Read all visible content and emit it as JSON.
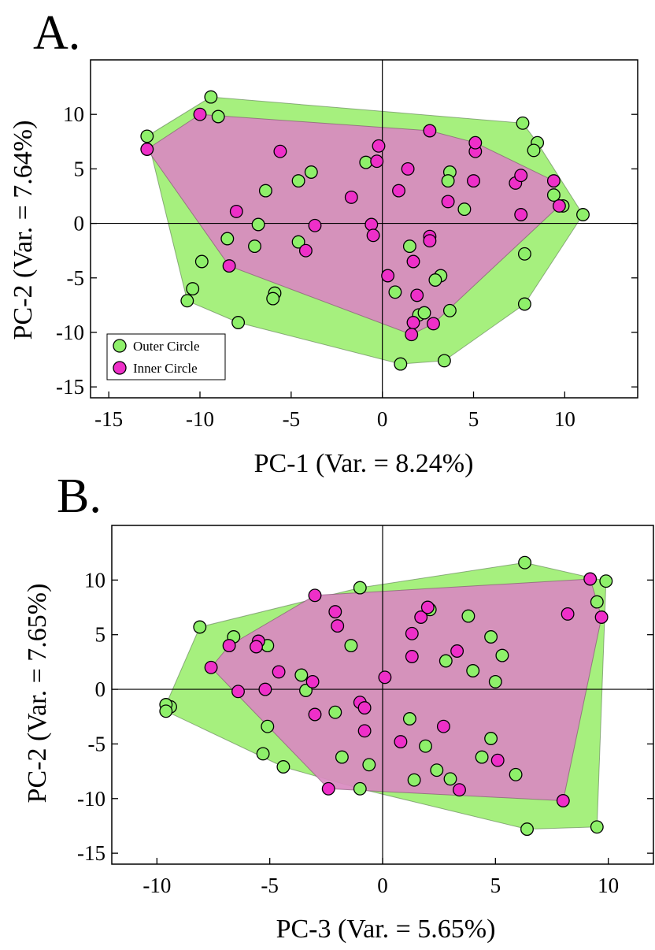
{
  "colors": {
    "outer": "#8ef06a",
    "inner": "#ee2fc8",
    "outer_hull": "#a6f07e",
    "inner_hull": "#d98ac0",
    "inner_hull_tail": "#f07ce0"
  },
  "panels": [
    {
      "letter": "A."
    },
    {
      "letter": "B."
    }
  ],
  "chart_data": [
    {
      "type": "scatter",
      "xlabel": "PC-1 (Var. = 8.24%)",
      "ylabel": "PC-2 (Var. = 7.64%)",
      "xlim": [
        -16,
        14
      ],
      "ylim": [
        -16,
        15
      ],
      "xticks": [
        -15,
        -10,
        -5,
        0,
        5,
        10
      ],
      "yticks": [
        -15,
        -10,
        -5,
        0,
        5,
        10
      ],
      "legend": {
        "placement": "bottom-left",
        "entries": [
          "Outer Circle",
          "Inner Circle"
        ]
      },
      "series": [
        {
          "name": "Outer Circle",
          "color": "#8ef06a",
          "points": [
            [
              -9.4,
              11.6
            ],
            [
              -12.9,
              8.0
            ],
            [
              -9.0,
              9.8
            ],
            [
              -3.9,
              4.7
            ],
            [
              -4.6,
              3.9
            ],
            [
              -6.4,
              3.0
            ],
            [
              -6.8,
              -0.1
            ],
            [
              -8.5,
              -1.4
            ],
            [
              -7.0,
              -2.1
            ],
            [
              -4.6,
              -1.7
            ],
            [
              -9.9,
              -3.5
            ],
            [
              -10.4,
              -6.0
            ],
            [
              -10.7,
              -7.1
            ],
            [
              -5.9,
              -6.4
            ],
            [
              -6.0,
              -6.9
            ],
            [
              -7.9,
              -9.1
            ],
            [
              7.7,
              9.2
            ],
            [
              8.5,
              7.4
            ],
            [
              8.3,
              6.7
            ],
            [
              3.7,
              4.7
            ],
            [
              3.6,
              3.9
            ],
            [
              4.5,
              1.3
            ],
            [
              9.4,
              2.6
            ],
            [
              9.9,
              1.6
            ],
            [
              11.0,
              0.8
            ],
            [
              -0.9,
              5.6
            ],
            [
              1.5,
              -2.1
            ],
            [
              7.8,
              -2.8
            ],
            [
              3.2,
              -4.8
            ],
            [
              2.9,
              -5.2
            ],
            [
              0.7,
              -6.3
            ],
            [
              7.8,
              -7.4
            ],
            [
              3.7,
              -8.0
            ],
            [
              2.0,
              -8.4
            ],
            [
              2.3,
              -8.2
            ],
            [
              1.0,
              -12.9
            ],
            [
              3.4,
              -12.6
            ]
          ]
        },
        {
          "name": "Inner Circle",
          "color": "#ee2fc8",
          "points": [
            [
              -12.9,
              6.8
            ],
            [
              -10.0,
              10.0
            ],
            [
              -5.6,
              6.6
            ],
            [
              -8.0,
              1.1
            ],
            [
              -3.7,
              -0.2
            ],
            [
              -4.2,
              -2.5
            ],
            [
              -8.4,
              -3.9
            ],
            [
              -1.7,
              2.4
            ],
            [
              -0.6,
              -0.1
            ],
            [
              -0.5,
              -1.1
            ],
            [
              -0.2,
              7.1
            ],
            [
              -0.3,
              5.7
            ],
            [
              0.9,
              3.0
            ],
            [
              1.4,
              5.0
            ],
            [
              2.6,
              8.5
            ],
            [
              2.6,
              -1.2
            ],
            [
              2.6,
              -1.6
            ],
            [
              1.7,
              -3.5
            ],
            [
              0.3,
              -4.8
            ],
            [
              1.9,
              -6.6
            ],
            [
              1.7,
              -9.1
            ],
            [
              1.6,
              -10.2
            ],
            [
              2.8,
              -9.2
            ],
            [
              3.6,
              2.0
            ],
            [
              5.1,
              6.6
            ],
            [
              5.1,
              7.4
            ],
            [
              5.0,
              3.9
            ],
            [
              7.3,
              3.7
            ],
            [
              7.6,
              4.4
            ],
            [
              7.6,
              0.8
            ],
            [
              9.4,
              3.9
            ],
            [
              9.7,
              1.6
            ]
          ]
        }
      ]
    },
    {
      "type": "scatter",
      "xlabel": "PC-3 (Var. = 5.65%)",
      "ylabel": "PC-2 (Var. = 7.65%)",
      "xlim": [
        -12,
        12
      ],
      "ylim": [
        -16,
        15
      ],
      "xticks": [
        -10,
        -5,
        0,
        5,
        10
      ],
      "yticks": [
        -15,
        -10,
        -5,
        0,
        5,
        10
      ],
      "series": [
        {
          "name": "Outer Circle",
          "color": "#8ef06a",
          "points": [
            [
              6.3,
              11.6
            ],
            [
              9.9,
              9.9
            ],
            [
              9.5,
              8.0
            ],
            [
              -8.1,
              5.7
            ],
            [
              -6.6,
              4.8
            ],
            [
              -5.1,
              4.0
            ],
            [
              -1.4,
              4.0
            ],
            [
              -3.6,
              1.3
            ],
            [
              -3.4,
              -0.1
            ],
            [
              -9.4,
              -1.6
            ],
            [
              -9.6,
              -1.4
            ],
            [
              -9.6,
              -2.0
            ],
            [
              -2.1,
              -2.1
            ],
            [
              -5.1,
              -3.4
            ],
            [
              -5.3,
              -5.9
            ],
            [
              -4.4,
              -7.1
            ],
            [
              -1.8,
              -6.2
            ],
            [
              -0.6,
              -6.9
            ],
            [
              -1.0,
              -9.1
            ],
            [
              -1.0,
              9.3
            ],
            [
              1.2,
              -2.7
            ],
            [
              1.9,
              -5.2
            ],
            [
              1.4,
              -8.3
            ],
            [
              2.4,
              -7.4
            ],
            [
              3.0,
              -8.2
            ],
            [
              2.8,
              2.6
            ],
            [
              3.8,
              6.7
            ],
            [
              4.0,
              1.7
            ],
            [
              4.8,
              4.8
            ],
            [
              4.8,
              -4.5
            ],
            [
              5.3,
              3.1
            ],
            [
              5.0,
              0.7
            ],
            [
              4.4,
              -6.2
            ],
            [
              5.9,
              -7.8
            ],
            [
              6.4,
              -12.8
            ],
            [
              9.5,
              -12.6
            ],
            [
              2.1,
              7.3
            ]
          ]
        },
        {
          "name": "Inner Circle",
          "color": "#ee2fc8",
          "points": [
            [
              9.2,
              10.1
            ],
            [
              -3.0,
              8.6
            ],
            [
              -2.1,
              7.1
            ],
            [
              -2.0,
              5.8
            ],
            [
              -6.8,
              4.0
            ],
            [
              -5.5,
              4.4
            ],
            [
              -5.6,
              3.9
            ],
            [
              -7.6,
              2.0
            ],
            [
              -4.6,
              1.6
            ],
            [
              -3.1,
              0.7
            ],
            [
              -6.4,
              -0.2
            ],
            [
              -5.2,
              0.0
            ],
            [
              -3.0,
              -2.3
            ],
            [
              -1.0,
              -1.2
            ],
            [
              -0.8,
              -1.7
            ],
            [
              -0.8,
              -3.8
            ],
            [
              0.1,
              1.1
            ],
            [
              0.8,
              -4.8
            ],
            [
              1.3,
              3.0
            ],
            [
              1.3,
              5.1
            ],
            [
              1.7,
              6.6
            ],
            [
              2.0,
              7.5
            ],
            [
              3.3,
              3.5
            ],
            [
              2.7,
              -3.4
            ],
            [
              3.4,
              -9.2
            ],
            [
              -2.4,
              -9.1
            ],
            [
              5.1,
              -6.5
            ],
            [
              8.2,
              6.9
            ],
            [
              9.7,
              6.6
            ],
            [
              8.0,
              -10.2
            ]
          ]
        }
      ]
    }
  ]
}
